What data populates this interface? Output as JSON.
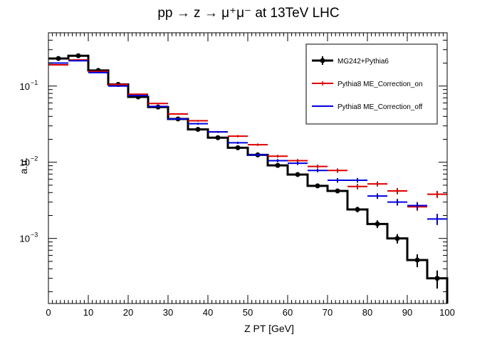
{
  "chart_data": {
    "type": "line",
    "title": "pp → z → μ⁺μ⁻ at 13TeV LHC",
    "xlabel": "Z PT [GeV]",
    "ylabel": "a.u.",
    "xlim": [
      0,
      100
    ],
    "ylim": [
      0.00014,
      0.5
    ],
    "yscale": "log",
    "grid": false,
    "legend_position": "top-right",
    "x_ticks": [
      "0",
      "10",
      "20",
      "30",
      "40",
      "50",
      "60",
      "70",
      "80",
      "90",
      "100"
    ],
    "y_ticks": [
      {
        "value": 0.1,
        "base": "10",
        "exp": "−1"
      },
      {
        "value": 0.01,
        "base": "10",
        "exp": "−2"
      },
      {
        "value": 0.001,
        "base": "10",
        "exp": "−3"
      }
    ],
    "bin_edges": [
      0,
      5,
      10,
      15,
      20,
      25,
      30,
      35,
      40,
      45,
      50,
      55,
      60,
      65,
      70,
      75,
      80,
      85,
      90,
      95,
      100
    ],
    "series": [
      {
        "name": "MG242+Pythia6",
        "color": "#000000",
        "style": "step-with-markers",
        "values": [
          0.23,
          0.25,
          0.16,
          0.105,
          0.072,
          0.053,
          0.037,
          0.027,
          0.021,
          0.0155,
          0.0125,
          0.0091,
          0.0069,
          0.0049,
          0.0042,
          0.0024,
          0.00155,
          0.001,
          0.00052,
          0.0003
        ],
        "errors": [
          0.004,
          0.004,
          0.003,
          0.002,
          0.0015,
          0.001,
          0.0008,
          0.0006,
          0.0005,
          0.0004,
          0.0003,
          0.0003,
          0.0003,
          0.00025,
          0.00025,
          0.0002,
          0.00018,
          0.00014,
          0.0001,
          8e-05
        ]
      },
      {
        "name": "Pythia8 ME_Correction_on",
        "color": "#dd0000",
        "style": "error-cross",
        "values": [
          0.19,
          0.22,
          0.155,
          0.105,
          0.078,
          0.059,
          0.043,
          0.035,
          0.025,
          0.022,
          0.017,
          0.012,
          0.0105,
          0.0088,
          0.0078,
          0.0048,
          0.0052,
          0.0042,
          0.0026,
          0.0038
        ],
        "errors": [
          0.004,
          0.004,
          0.003,
          0.002,
          0.0015,
          0.0012,
          0.001,
          0.0009,
          0.0007,
          0.0007,
          0.0006,
          0.0005,
          0.0005,
          0.0005,
          0.0005,
          0.0004,
          0.0004,
          0.0004,
          0.0003,
          0.0004
        ]
      },
      {
        "name": "Pythia8 ME_Correction_off",
        "color": "#0000dd",
        "style": "error-cross",
        "values": [
          0.2,
          0.215,
          0.15,
          0.1,
          0.075,
          0.054,
          0.037,
          0.032,
          0.025,
          0.018,
          0.0125,
          0.0105,
          0.0097,
          0.0078,
          0.0058,
          0.0058,
          0.0036,
          0.003,
          0.0027,
          0.0018
        ],
        "errors": [
          0.004,
          0.004,
          0.003,
          0.002,
          0.0015,
          0.0012,
          0.001,
          0.0009,
          0.0007,
          0.0006,
          0.0005,
          0.0005,
          0.0005,
          0.0004,
          0.0004,
          0.0004,
          0.0003,
          0.0003,
          0.0003,
          0.0003
        ]
      }
    ]
  }
}
